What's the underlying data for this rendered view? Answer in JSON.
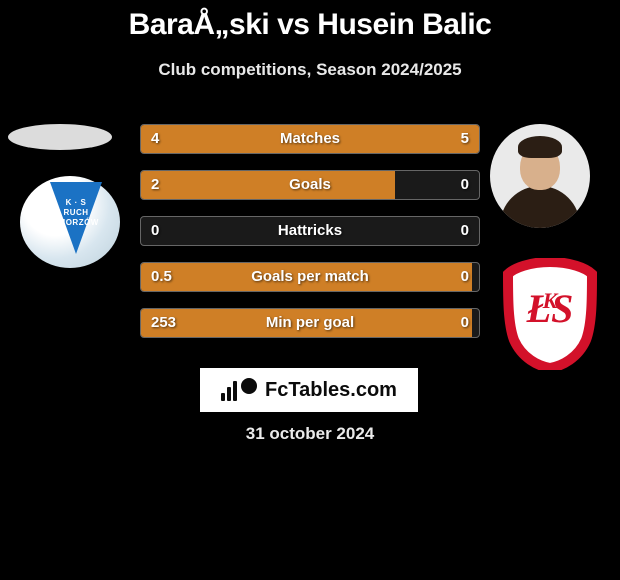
{
  "title": "BaraÅ„ski vs Husein Balic",
  "subtitle": "Club competitions, Season 2024/2025",
  "date": "31 october 2024",
  "banner": {
    "text": "FcTables.com"
  },
  "colors": {
    "background": "#000000",
    "bar_fill": "#cf7f26",
    "bar_border": "#666666",
    "bar_track": "#1a1a1a",
    "text": "#ffffff"
  },
  "bar_chart": {
    "rows": [
      {
        "metric": "Matches",
        "left_value": "4",
        "right_value": "5",
        "left_pct": 44.4,
        "right_pct": 55.6
      },
      {
        "metric": "Goals",
        "left_value": "2",
        "right_value": "0",
        "left_pct": 75.0,
        "right_pct": 0.0
      },
      {
        "metric": "Hattricks",
        "left_value": "0",
        "right_value": "0",
        "left_pct": 0.0,
        "right_pct": 0.0
      },
      {
        "metric": "Goals per match",
        "left_value": "0.5",
        "right_value": "0",
        "left_pct": 98.0,
        "right_pct": 0.0
      },
      {
        "metric": "Min per goal",
        "left_value": "253",
        "right_value": "0",
        "left_pct": 98.0,
        "right_pct": 0.0
      }
    ]
  },
  "club_left": {
    "name": "Ruch Chorzów",
    "pennant_line1": "RUCH",
    "pennant_line2": "CHORZÓW",
    "pennant_ks": "K · S"
  },
  "club_right": {
    "name": "ŁKS Łódź"
  }
}
